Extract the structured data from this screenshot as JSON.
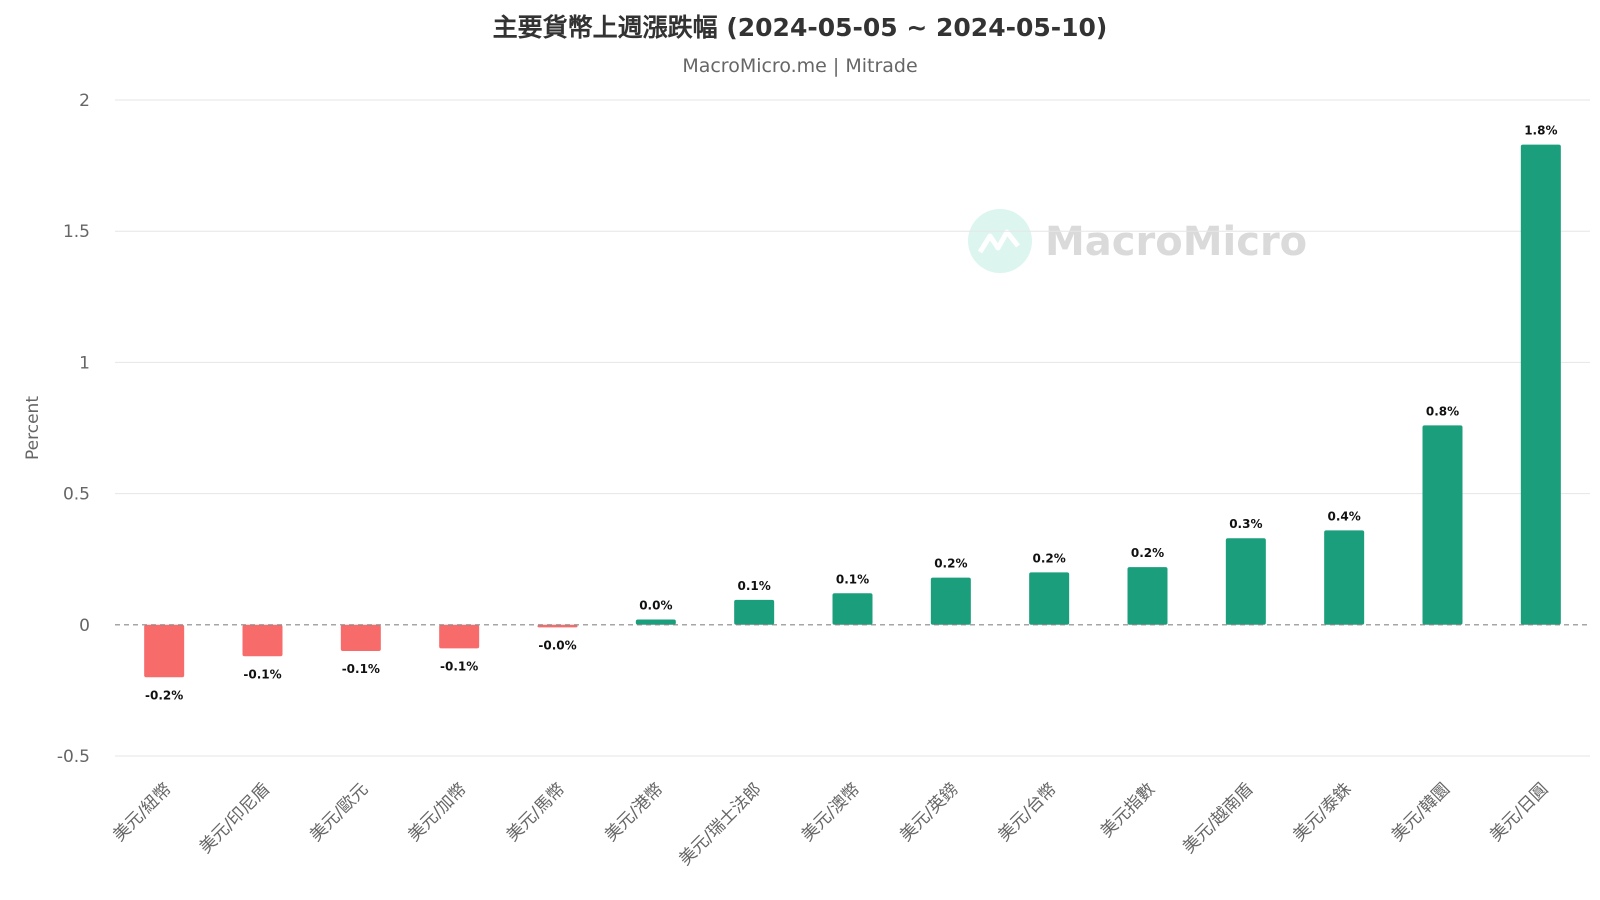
{
  "chart_data": {
    "type": "bar",
    "title": "主要貨幣上週漲跌幅 (2024-05-05 ~ 2024-05-10)",
    "subtitle": "MacroMicro.me | Mitrade",
    "ylabel": "Percent",
    "xlabel": "",
    "ylim": [
      -0.5,
      2
    ],
    "yticks": [
      2,
      1.5,
      1,
      0.5,
      0,
      -0.5
    ],
    "grid": true,
    "categories": [
      "美元/紐幣",
      "美元/印尼盾",
      "美元/歐元",
      "美元/加幣",
      "美元/馬幣",
      "美元/港幣",
      "美元/瑞士法郎",
      "美元/澳幣",
      "美元/英鎊",
      "美元/台幣",
      "美元指數",
      "美元/越南盾",
      "美元/泰銖",
      "美元/韓圜",
      "美元/日圓"
    ],
    "values": [
      -0.2,
      -0.12,
      -0.1,
      -0.09,
      -0.01,
      0.02,
      0.095,
      0.12,
      0.18,
      0.2,
      0.22,
      0.33,
      0.36,
      0.76,
      1.83
    ],
    "data_labels": [
      "-0.2%",
      "-0.1%",
      "-0.1%",
      "-0.1%",
      "-0.0%",
      "0.0%",
      "0.1%",
      "0.1%",
      "0.2%",
      "0.2%",
      "0.2%",
      "0.3%",
      "0.4%",
      "0.8%",
      "1.8%"
    ],
    "colors": {
      "positive": "#1b9e7c",
      "negative": "#f76b6b"
    }
  },
  "watermark": {
    "text": "MacroMicro"
  }
}
